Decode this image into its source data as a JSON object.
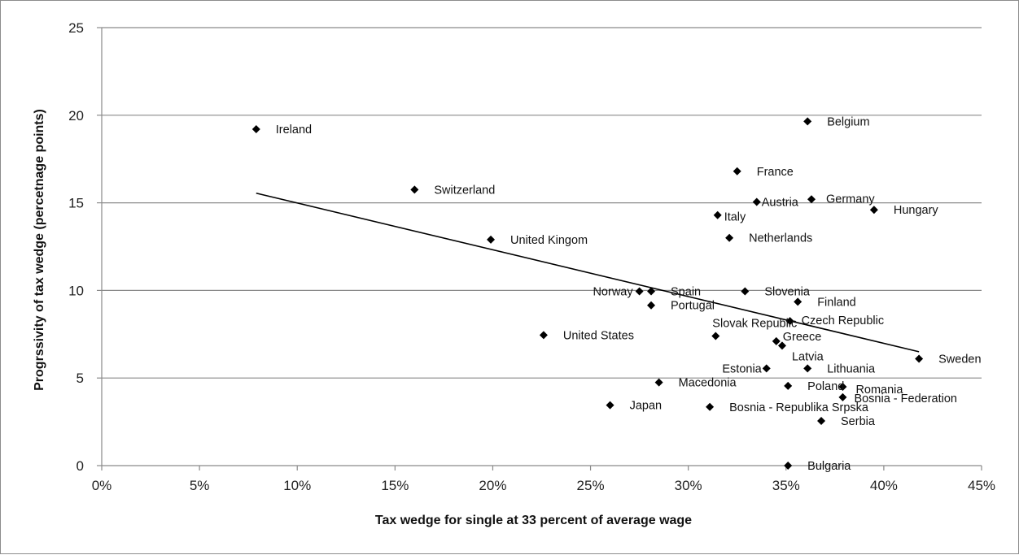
{
  "chart_data": {
    "type": "scatter",
    "title": "",
    "xlabel": "Tax wedge for single at 33 percent of average wage",
    "ylabel": "Progrssivity of tax wedge (percetnage points)",
    "x_unit": "%",
    "xlim": [
      0,
      45
    ],
    "ylim": [
      0,
      25
    ],
    "x_ticks": [
      0,
      5,
      10,
      15,
      20,
      25,
      30,
      35,
      40,
      45
    ],
    "y_ticks": [
      0,
      5,
      10,
      15,
      20,
      25
    ],
    "grid": "horizontal",
    "legend": "none",
    "marker": "diamond",
    "marker_color": "#000000",
    "points": [
      {
        "label": "Ireland",
        "x": 7.9,
        "y": 19.2
      },
      {
        "label": "Switzerland",
        "x": 16.0,
        "y": 15.75
      },
      {
        "label": "United Kingom",
        "x": 19.9,
        "y": 12.9
      },
      {
        "label": "United States",
        "x": 22.6,
        "y": 7.45
      },
      {
        "label": "Japan",
        "x": 26.0,
        "y": 3.45
      },
      {
        "label": "Norway",
        "x": 27.5,
        "y": 9.95
      },
      {
        "label": "Spain",
        "x": 28.1,
        "y": 9.95
      },
      {
        "label": "Portugal",
        "x": 28.1,
        "y": 9.15
      },
      {
        "label": "Macedonia",
        "x": 28.5,
        "y": 4.75
      },
      {
        "label": "Bosnia - Republika Srpska",
        "x": 31.1,
        "y": 3.35
      },
      {
        "label": "Slovak Republic",
        "x": 31.4,
        "y": 7.4
      },
      {
        "label": "Italy",
        "x": 31.5,
        "y": 14.3
      },
      {
        "label": "Netherlands",
        "x": 32.1,
        "y": 13.0
      },
      {
        "label": "France",
        "x": 32.5,
        "y": 16.8
      },
      {
        "label": "Slovenia",
        "x": 32.9,
        "y": 9.95
      },
      {
        "label": "Austria",
        "x": 33.5,
        "y": 15.05
      },
      {
        "label": "Estonia",
        "x": 34.0,
        "y": 5.55
      },
      {
        "label": "Greece",
        "x": 34.5,
        "y": 7.1
      },
      {
        "label": "Latvia",
        "x": 34.8,
        "y": 6.85
      },
      {
        "label": "Poland",
        "x": 35.1,
        "y": 4.55
      },
      {
        "label": "Bulgaria",
        "x": 35.1,
        "y": 0.0
      },
      {
        "label": "Czech Republic",
        "x": 35.2,
        "y": 8.25
      },
      {
        "label": "Finland",
        "x": 35.6,
        "y": 9.35
      },
      {
        "label": "Belgium",
        "x": 36.1,
        "y": 19.65
      },
      {
        "label": "Lithuania",
        "x": 36.1,
        "y": 5.55
      },
      {
        "label": "Germany",
        "x": 36.3,
        "y": 15.2
      },
      {
        "label": "Serbia",
        "x": 36.8,
        "y": 2.55
      },
      {
        "label": "Romania",
        "x": 37.9,
        "y": 4.5
      },
      {
        "label": "Bosnia - Federation",
        "x": 37.9,
        "y": 3.9
      },
      {
        "label": "Hungary",
        "x": 39.5,
        "y": 14.6
      },
      {
        "label": "Sweden",
        "x": 41.8,
        "y": 6.1
      }
    ],
    "trendline": {
      "x": [
        7.9,
        41.8
      ],
      "y": [
        15.55,
        6.5
      ]
    }
  }
}
